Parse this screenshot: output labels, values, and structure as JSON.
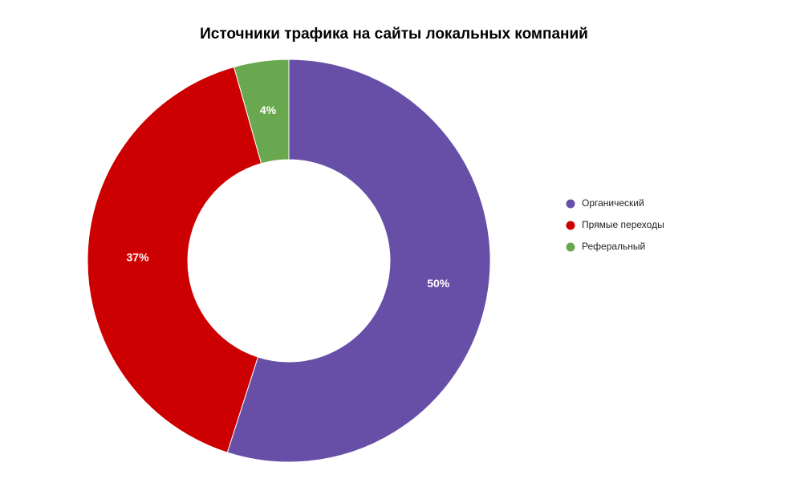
{
  "chart_data": {
    "type": "pie",
    "title": "Источники трафика на сайты локальных компаний",
    "categories": [
      "Органический",
      "Прямые переходы",
      "Реферальный"
    ],
    "values": [
      50,
      37,
      4
    ],
    "value_labels": [
      "50%",
      "37%",
      "4%"
    ],
    "colors": [
      "#674ea7",
      "#cc0000",
      "#6aa84f"
    ],
    "legend": "right"
  }
}
